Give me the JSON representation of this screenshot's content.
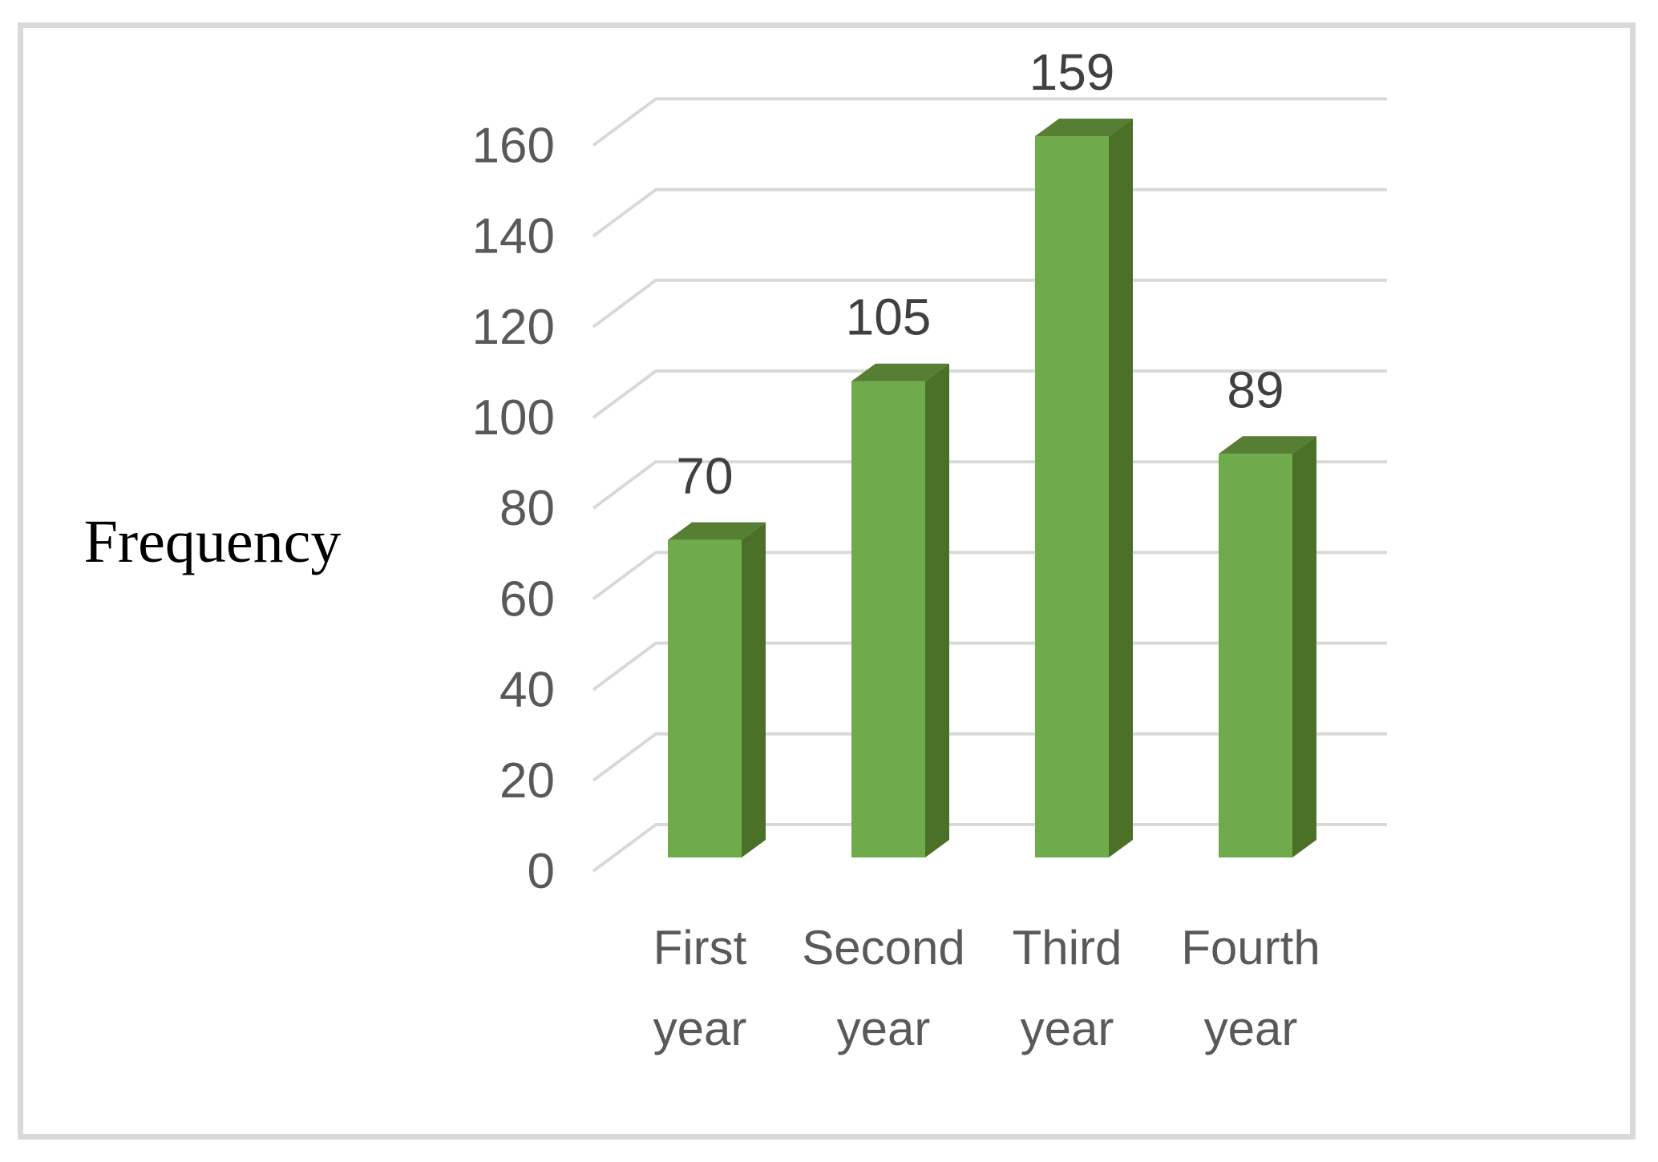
{
  "chart": {
    "axis_title": "Frequency"
  },
  "chart_data": {
    "type": "bar",
    "style": "3d-column",
    "title": "",
    "xlabel": "",
    "ylabel": "Frequency",
    "categories": [
      "First year",
      "Second year",
      "Third year",
      "Fourth year"
    ],
    "values": [
      70,
      105,
      159,
      89
    ],
    "data_labels": [
      "70",
      "105",
      "159",
      "89"
    ],
    "ylim": [
      0,
      160
    ],
    "ytick_interval": 20,
    "yticks": [
      0,
      20,
      40,
      60,
      80,
      100,
      120,
      140,
      160
    ],
    "ytick_labels": [
      "0",
      "20",
      "40",
      "60",
      "80",
      "100",
      "120",
      "140",
      "160"
    ],
    "grid": true,
    "legend": false,
    "colors": {
      "bar_front": "#6FAA4B",
      "bar_top": "#567F33",
      "bar_side": "#4B7129",
      "gridline": "#D9D9D9",
      "tick_label": "#595959",
      "category_label": "#595959",
      "data_label": "#404040",
      "axis_title": "#000000",
      "frame_border": "#D9D9D9",
      "background": "#FFFFFF"
    }
  }
}
